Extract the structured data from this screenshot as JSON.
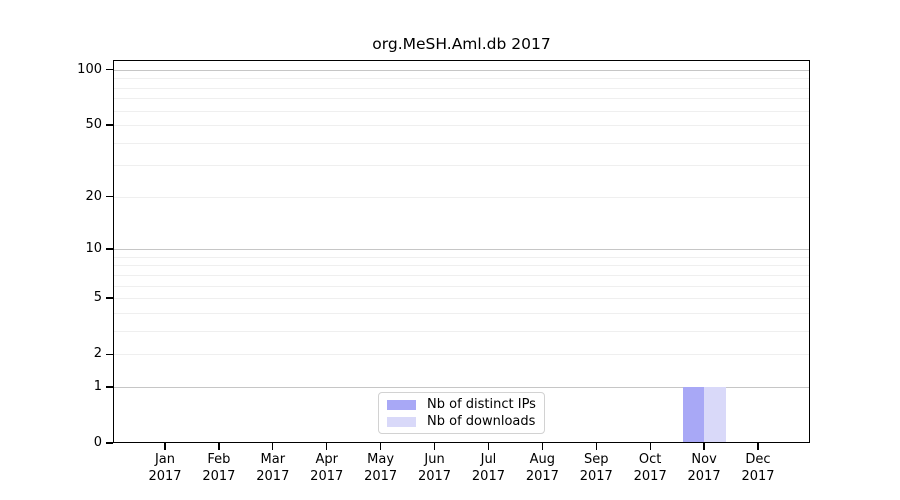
{
  "chart_data": {
    "type": "bar",
    "title": "org.MeSH.Aml.db 2017",
    "categories": [
      "Jan 2017",
      "Feb 2017",
      "Mar 2017",
      "Apr 2017",
      "May 2017",
      "Jun 2017",
      "Jul 2017",
      "Aug 2017",
      "Sep 2017",
      "Oct 2017",
      "Nov 2017",
      "Dec 2017"
    ],
    "series": [
      {
        "name": "Nb of distinct IPs",
        "color": "#a8a8f6",
        "values": [
          0,
          0,
          0,
          0,
          0,
          0,
          0,
          0,
          0,
          0,
          1,
          0
        ]
      },
      {
        "name": "Nb of downloads",
        "color": "#d9d9f9",
        "values": [
          0,
          0,
          0,
          0,
          0,
          0,
          0,
          0,
          0,
          0,
          1,
          0
        ]
      }
    ],
    "xlabel": "",
    "ylabel": "",
    "yscale": "log1p",
    "ylim": [
      0,
      113
    ],
    "yticks": [
      0,
      1,
      2,
      5,
      10,
      20,
      50,
      100
    ],
    "major_gridlines": [
      1,
      10,
      100
    ],
    "minor_gridlines": [
      2,
      3,
      4,
      5,
      6,
      7,
      8,
      9,
      20,
      30,
      40,
      50,
      60,
      70,
      80,
      90
    ],
    "grid": "horizontal",
    "legend_position": "bottom-center",
    "colors": {
      "bar_distinct_ips": "#a8a8f6",
      "bar_downloads": "#d9d9f9",
      "major_grid": "#c6c6c6",
      "minor_grid": "#efefef",
      "axis": "#000000",
      "background": "#ffffff"
    }
  }
}
